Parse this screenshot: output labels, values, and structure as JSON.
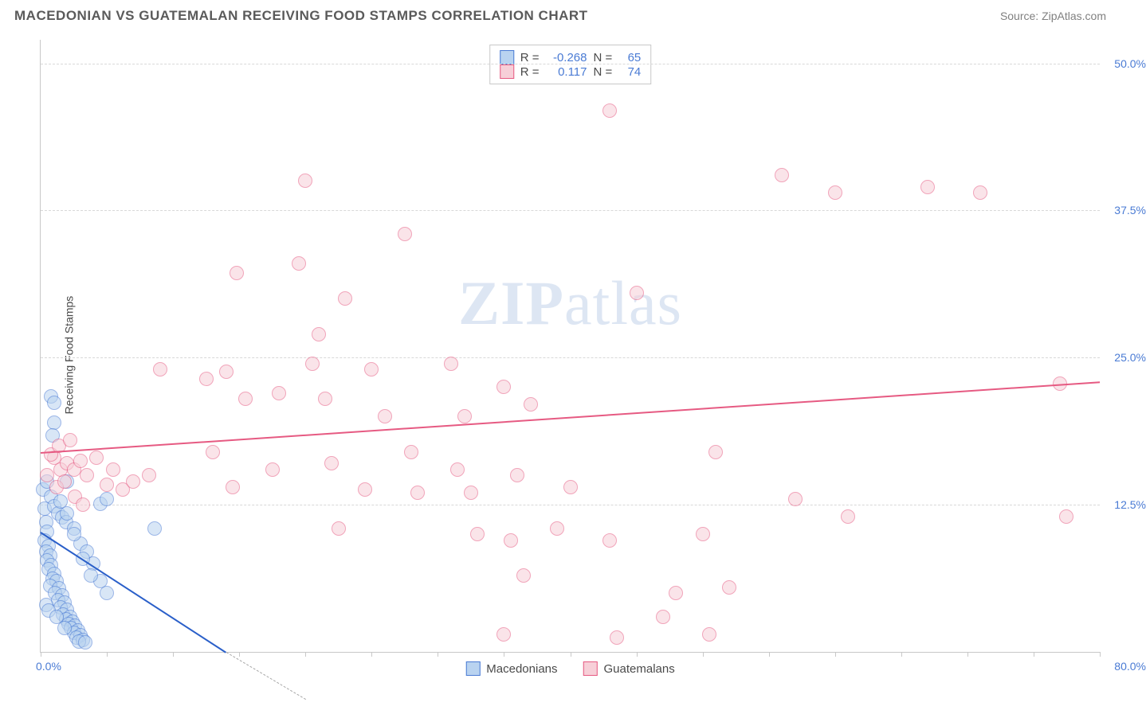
{
  "title": "MACEDONIAN VS GUATEMALAN RECEIVING FOOD STAMPS CORRELATION CHART",
  "source_label": "Source:",
  "source_name": "ZipAtlas.com",
  "ylabel": "Receiving Food Stamps",
  "watermark_a": "ZIP",
  "watermark_b": "atlas",
  "chart": {
    "type": "scatter",
    "xlim": [
      0,
      80
    ],
    "ylim": [
      0,
      52
    ],
    "x_origin_label": "0.0%",
    "x_max_label": "80.0%",
    "x_tick_step": 5,
    "y_ticks": [
      12.5,
      25.0,
      37.5,
      50.0
    ],
    "y_tick_labels": [
      "12.5%",
      "25.0%",
      "37.5%",
      "50.0%"
    ],
    "grid_color": "#d8d8d8",
    "axis_color": "#c8c8c8",
    "background_color": "#ffffff",
    "point_radius": 9,
    "point_opacity": 0.55,
    "series": [
      {
        "name": "Macedonians",
        "fill": "#b9d3f0",
        "stroke": "#4a7bd4",
        "trend_color": "#2a5fc9",
        "r_value": "-0.268",
        "n_value": "65",
        "trend": {
          "x1": 0,
          "y1": 10.2,
          "x2": 14,
          "y2": 0
        },
        "points": [
          [
            0.2,
            13.8
          ],
          [
            0.3,
            12.2
          ],
          [
            0.4,
            11.0
          ],
          [
            0.5,
            10.2
          ],
          [
            0.3,
            9.5
          ],
          [
            0.6,
            9.0
          ],
          [
            0.4,
            8.5
          ],
          [
            0.7,
            8.2
          ],
          [
            0.5,
            7.8
          ],
          [
            0.8,
            7.4
          ],
          [
            0.6,
            7.0
          ],
          [
            1.0,
            6.6
          ],
          [
            0.9,
            6.2
          ],
          [
            1.2,
            6.0
          ],
          [
            0.7,
            5.6
          ],
          [
            1.4,
            5.4
          ],
          [
            1.1,
            5.0
          ],
          [
            1.6,
            4.8
          ],
          [
            1.3,
            4.4
          ],
          [
            1.8,
            4.2
          ],
          [
            1.5,
            3.8
          ],
          [
            2.0,
            3.6
          ],
          [
            1.7,
            3.2
          ],
          [
            2.2,
            3.0
          ],
          [
            1.9,
            2.8
          ],
          [
            2.4,
            2.6
          ],
          [
            2.1,
            2.4
          ],
          [
            2.6,
            2.2
          ],
          [
            2.3,
            2.0
          ],
          [
            2.8,
            1.8
          ],
          [
            2.5,
            1.6
          ],
          [
            3.0,
            1.4
          ],
          [
            2.7,
            1.2
          ],
          [
            3.2,
            1.0
          ],
          [
            2.9,
            0.9
          ],
          [
            3.4,
            0.8
          ],
          [
            0.5,
            14.5
          ],
          [
            0.8,
            13.2
          ],
          [
            1.0,
            12.4
          ],
          [
            1.3,
            11.8
          ],
          [
            1.6,
            11.4
          ],
          [
            1.9,
            11.0
          ],
          [
            0.8,
            21.7
          ],
          [
            1.0,
            19.5
          ],
          [
            1.0,
            21.2
          ],
          [
            0.9,
            18.4
          ],
          [
            1.5,
            12.8
          ],
          [
            2.0,
            11.8
          ],
          [
            2.5,
            10.5
          ],
          [
            3.0,
            9.2
          ],
          [
            3.5,
            8.5
          ],
          [
            4.0,
            7.5
          ],
          [
            4.5,
            6.0
          ],
          [
            5.0,
            5.0
          ],
          [
            0.4,
            4.0
          ],
          [
            0.6,
            3.5
          ],
          [
            1.2,
            3.0
          ],
          [
            1.8,
            2.0
          ],
          [
            3.2,
            7.9
          ],
          [
            3.8,
            6.5
          ],
          [
            8.6,
            10.5
          ],
          [
            4.5,
            12.6
          ],
          [
            5.0,
            13.0
          ],
          [
            2.0,
            14.5
          ],
          [
            2.5,
            10.0
          ]
        ]
      },
      {
        "name": "Guatemalans",
        "fill": "#f7cfd8",
        "stroke": "#e65a82",
        "trend_color": "#e65a82",
        "r_value": "0.117",
        "n_value": "74",
        "trend": {
          "x1": 0,
          "y1": 17.0,
          "x2": 80,
          "y2": 23.0
        },
        "points": [
          [
            0.5,
            15.0
          ],
          [
            1.0,
            16.5
          ],
          [
            1.5,
            15.5
          ],
          [
            2.0,
            16.0
          ],
          [
            1.2,
            14.0
          ],
          [
            1.8,
            14.5
          ],
          [
            2.5,
            15.5
          ],
          [
            0.8,
            16.8
          ],
          [
            1.4,
            17.5
          ],
          [
            2.2,
            18.0
          ],
          [
            3.0,
            16.2
          ],
          [
            3.5,
            15.0
          ],
          [
            2.6,
            13.2
          ],
          [
            3.2,
            12.5
          ],
          [
            4.2,
            16.5
          ],
          [
            5.0,
            14.2
          ],
          [
            5.5,
            15.5
          ],
          [
            6.2,
            13.8
          ],
          [
            7.0,
            14.5
          ],
          [
            8.2,
            15.0
          ],
          [
            9.0,
            24.0
          ],
          [
            12.5,
            23.2
          ],
          [
            14.0,
            23.8
          ],
          [
            15.5,
            21.5
          ],
          [
            13.0,
            17.0
          ],
          [
            14.5,
            14.0
          ],
          [
            14.8,
            32.2
          ],
          [
            18.0,
            22.0
          ],
          [
            17.5,
            15.5
          ],
          [
            20.0,
            40.0
          ],
          [
            19.5,
            33.0
          ],
          [
            20.5,
            24.5
          ],
          [
            21.0,
            27.0
          ],
          [
            21.5,
            21.5
          ],
          [
            22.0,
            16.0
          ],
          [
            22.5,
            10.5
          ],
          [
            23.0,
            30.0
          ],
          [
            24.5,
            13.8
          ],
          [
            25.0,
            24.0
          ],
          [
            26.0,
            20.0
          ],
          [
            27.5,
            35.5
          ],
          [
            28.0,
            17.0
          ],
          [
            28.5,
            13.5
          ],
          [
            31.0,
            24.5
          ],
          [
            32.0,
            20.0
          ],
          [
            31.5,
            15.5
          ],
          [
            32.5,
            13.5
          ],
          [
            33.0,
            10.0
          ],
          [
            35.0,
            22.5
          ],
          [
            37.0,
            21.0
          ],
          [
            36.0,
            15.0
          ],
          [
            35.5,
            9.5
          ],
          [
            35.0,
            1.5
          ],
          [
            36.5,
            6.5
          ],
          [
            39.0,
            10.5
          ],
          [
            40.0,
            14.0
          ],
          [
            43.0,
            46.0
          ],
          [
            43.0,
            9.5
          ],
          [
            43.5,
            1.2
          ],
          [
            45.0,
            30.5
          ],
          [
            48.0,
            5.0
          ],
          [
            47.0,
            3.0
          ],
          [
            50.0,
            10.0
          ],
          [
            51.0,
            17.0
          ],
          [
            52.0,
            5.5
          ],
          [
            50.5,
            1.5
          ],
          [
            56.0,
            40.5
          ],
          [
            57.0,
            13.0
          ],
          [
            60.0,
            39.0
          ],
          [
            61.0,
            11.5
          ],
          [
            67.0,
            39.5
          ],
          [
            71.0,
            39.0
          ],
          [
            77.0,
            22.8
          ],
          [
            77.5,
            11.5
          ]
        ]
      }
    ]
  },
  "legend": {
    "series1_label": "Macedonians",
    "series2_label": "Guatemalans"
  },
  "stat_labels": {
    "r": "R =",
    "n": "N ="
  }
}
